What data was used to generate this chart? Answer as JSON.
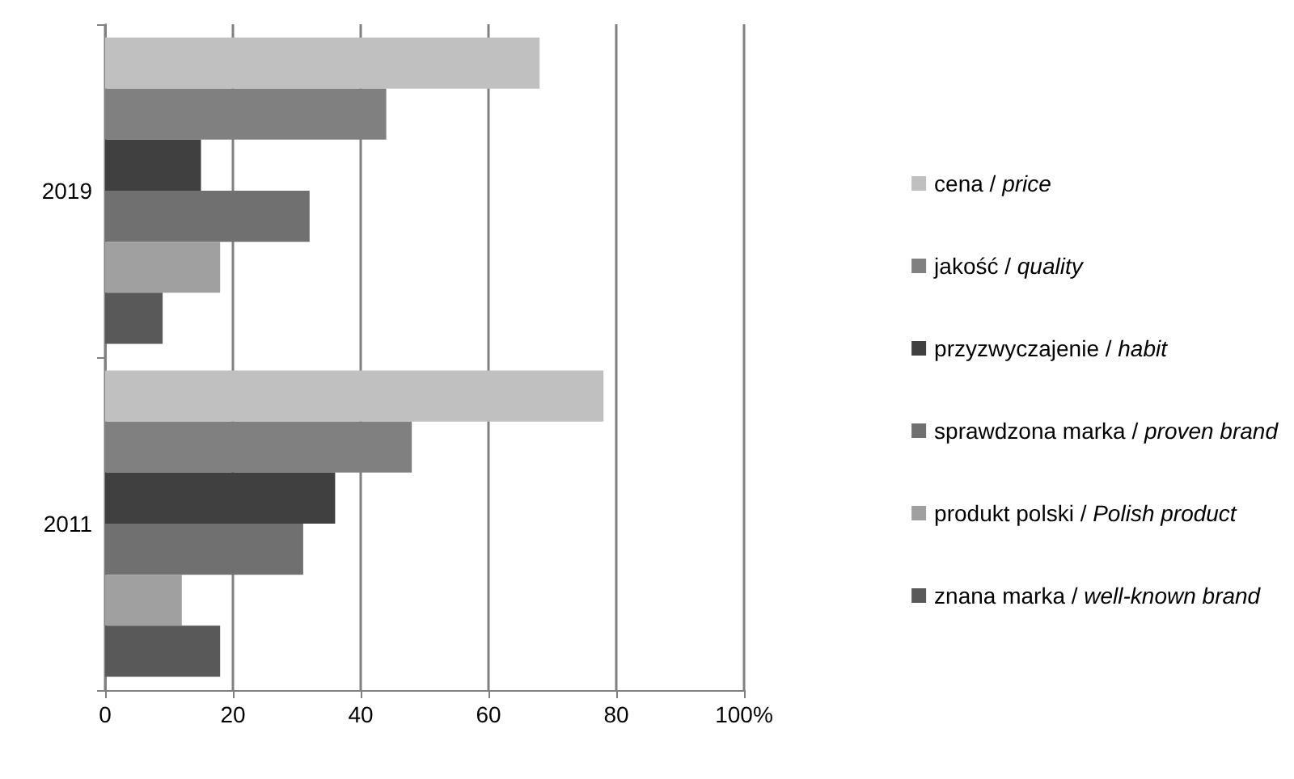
{
  "chart_data": {
    "type": "bar",
    "orientation": "horizontal",
    "categories": [
      "2019",
      "2011"
    ],
    "series": [
      {
        "name": "cena / price",
        "color": "#c0c0c0",
        "values": [
          68,
          78
        ]
      },
      {
        "name": "jakość / quality",
        "color": "#808080",
        "values": [
          44,
          48
        ]
      },
      {
        "name": "przyzwyczajenie / habit",
        "color": "#404040",
        "values": [
          15,
          36
        ]
      },
      {
        "name": "sprawdzona marka / proven brand",
        "color": "#707070",
        "values": [
          32,
          31
        ]
      },
      {
        "name": "produkt polski / Polish product",
        "color": "#a0a0a0",
        "values": [
          18,
          12
        ]
      },
      {
        "name": "znana marka / well-known brand",
        "color": "#595959",
        "values": [
          9,
          18
        ]
      }
    ],
    "xlim": [
      0,
      100
    ],
    "xticks": [
      0,
      20,
      40,
      60,
      80,
      {
        "value": 100,
        "label": "100%"
      }
    ],
    "grid": "x",
    "legend": "right"
  }
}
